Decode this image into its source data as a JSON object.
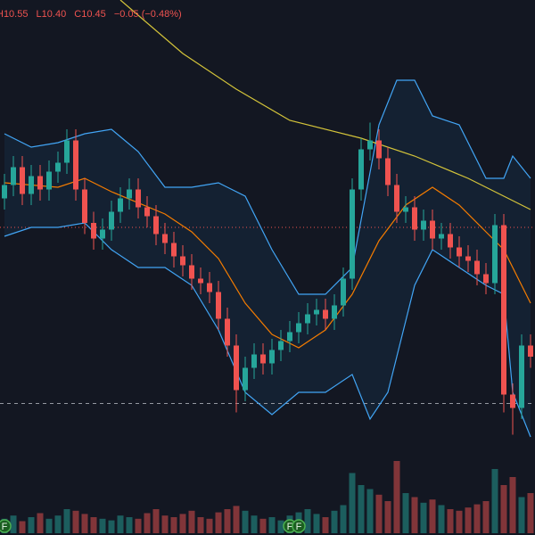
{
  "chart_data": {
    "type": "candlestick",
    "legend": [
      "H10.55",
      "L10.40",
      "C10.45",
      "−0.05 (−0.48%)"
    ],
    "up_color": "#26a69a",
    "down_color": "#ef5350",
    "ylim": [
      10.05,
      12.05
    ],
    "open": [
      11.16,
      11.22,
      11.3,
      11.18,
      11.26,
      11.2,
      11.28,
      11.32,
      11.42,
      11.2,
      11.05,
      10.98,
      11.02,
      11.1,
      11.16,
      11.2,
      11.12,
      11.08,
      11.0,
      10.96,
      10.9,
      10.86,
      10.8,
      10.78,
      10.74,
      10.62,
      10.5,
      10.3,
      10.4,
      10.46,
      10.42,
      10.48,
      10.52,
      10.56,
      10.6,
      10.64,
      10.66,
      10.62,
      10.68,
      10.8,
      11.2,
      11.38,
      11.42,
      11.34,
      11.22,
      11.1,
      11.12,
      11.02,
      11.06,
      10.98,
      11.0,
      10.94,
      10.9,
      10.88,
      10.82,
      10.78,
      11.04,
      10.28,
      10.22,
      10.5
    ],
    "high": [
      11.27,
      11.35,
      11.35,
      11.31,
      11.31,
      11.33,
      11.37,
      11.47,
      11.47,
      11.25,
      11.1,
      11.07,
      11.15,
      11.21,
      11.25,
      11.25,
      11.17,
      11.13,
      11.05,
      11.01,
      10.95,
      10.91,
      10.85,
      10.83,
      10.79,
      10.67,
      10.55,
      10.45,
      10.51,
      10.51,
      10.53,
      10.57,
      10.61,
      10.65,
      10.69,
      10.71,
      10.71,
      10.73,
      10.85,
      11.25,
      11.43,
      11.5,
      11.47,
      11.39,
      11.27,
      11.17,
      11.17,
      11.11,
      11.11,
      11.05,
      11.05,
      10.99,
      10.95,
      10.93,
      10.87,
      11.09,
      11.09,
      10.33,
      10.55,
      10.55
    ],
    "low": [
      11.11,
      11.17,
      11.13,
      11.13,
      11.15,
      11.15,
      11.23,
      11.27,
      11.15,
      11.0,
      10.93,
      10.93,
      10.97,
      11.05,
      11.11,
      11.07,
      11.03,
      10.95,
      10.91,
      10.85,
      10.81,
      10.75,
      10.73,
      10.69,
      10.57,
      10.45,
      10.2,
      10.25,
      10.35,
      10.37,
      10.37,
      10.43,
      10.47,
      10.51,
      10.55,
      10.59,
      10.57,
      10.57,
      10.63,
      10.75,
      11.15,
      11.33,
      11.29,
      11.17,
      11.05,
      11.05,
      10.97,
      10.97,
      10.93,
      10.93,
      10.89,
      10.85,
      10.83,
      10.77,
      10.73,
      10.73,
      10.2,
      10.1,
      10.17,
      10.4
    ],
    "close": [
      11.22,
      11.3,
      11.18,
      11.26,
      11.2,
      11.28,
      11.32,
      11.42,
      11.2,
      11.05,
      10.98,
      11.02,
      11.1,
      11.16,
      11.2,
      11.12,
      11.08,
      11.0,
      10.96,
      10.9,
      10.86,
      10.8,
      10.78,
      10.74,
      10.62,
      10.5,
      10.3,
      10.4,
      10.46,
      10.42,
      10.48,
      10.52,
      10.56,
      10.6,
      10.64,
      10.66,
      10.62,
      10.68,
      10.8,
      11.2,
      11.38,
      11.42,
      11.34,
      11.22,
      11.1,
      11.12,
      11.02,
      11.06,
      10.98,
      11.0,
      10.94,
      10.9,
      10.88,
      10.82,
      10.78,
      11.04,
      10.28,
      10.22,
      10.5,
      10.45
    ],
    "volume_lim": [
      0,
      100
    ],
    "volume": [
      18,
      22,
      15,
      20,
      25,
      18,
      22,
      30,
      28,
      24,
      20,
      18,
      16,
      22,
      20,
      18,
      25,
      30,
      22,
      20,
      24,
      28,
      20,
      18,
      26,
      30,
      34,
      28,
      22,
      18,
      20,
      16,
      22,
      26,
      30,
      24,
      20,
      28,
      35,
      75,
      60,
      55,
      48,
      40,
      90,
      50,
      45,
      38,
      42,
      35,
      30,
      28,
      32,
      36,
      40,
      80,
      60,
      70,
      45,
      50
    ],
    "overlays": [
      {
        "color": "#42a5f5",
        "x": [
          0,
          3,
          6,
          9,
          12,
          15,
          18,
          21,
          24,
          27,
          30,
          33,
          36,
          39,
          42,
          44,
          46,
          48,
          51,
          54,
          56,
          57,
          59
        ],
        "values": [
          11.45,
          11.39,
          11.41,
          11.45,
          11.47,
          11.37,
          11.21,
          11.21,
          11.23,
          11.17,
          10.93,
          10.73,
          10.73,
          10.85,
          11.49,
          11.69,
          11.69,
          11.53,
          11.49,
          11.25,
          11.25,
          11.35,
          11.25
        ]
      },
      {
        "color": "#42a5f5",
        "x": [
          0,
          3,
          6,
          9,
          12,
          15,
          18,
          21,
          24,
          27,
          30,
          33,
          36,
          39,
          41,
          43,
          46,
          48,
          51,
          54,
          56,
          57,
          59
        ],
        "values": [
          10.99,
          11.03,
          11.03,
          11.05,
          10.93,
          10.85,
          10.85,
          10.77,
          10.57,
          10.29,
          10.19,
          10.29,
          10.29,
          10.37,
          10.17,
          10.29,
          10.77,
          10.93,
          10.85,
          10.77,
          10.73,
          10.29,
          10.09
        ]
      },
      {
        "color": "#f57c00",
        "x": [
          0,
          6,
          9,
          12,
          18,
          21,
          24,
          27,
          30,
          33,
          36,
          39,
          42,
          45,
          48,
          51,
          54,
          56,
          59
        ],
        "values": [
          11.23,
          11.21,
          11.25,
          11.19,
          11.09,
          11.01,
          10.89,
          10.69,
          10.55,
          10.49,
          10.57,
          10.73,
          10.97,
          11.13,
          11.21,
          11.13,
          11.01,
          10.93,
          10.69
        ]
      },
      {
        "color": "#d4c43a",
        "x": [
          13,
          20,
          26,
          32,
          40,
          46,
          52,
          56,
          59
        ],
        "values": [
          12.05,
          11.81,
          11.65,
          11.51,
          11.43,
          11.35,
          11.25,
          11.17,
          11.11
        ]
      }
    ],
    "price_lines": [
      {
        "value": 11.03,
        "color": "#ef5350",
        "dash": "1 3"
      },
      {
        "value": 10.24,
        "color": "#9598a1",
        "dash": "4 4"
      }
    ],
    "events": [
      {
        "index": 0,
        "label": "F"
      },
      {
        "index": 32,
        "label": "F"
      },
      {
        "index": 33,
        "label": "F"
      }
    ]
  }
}
